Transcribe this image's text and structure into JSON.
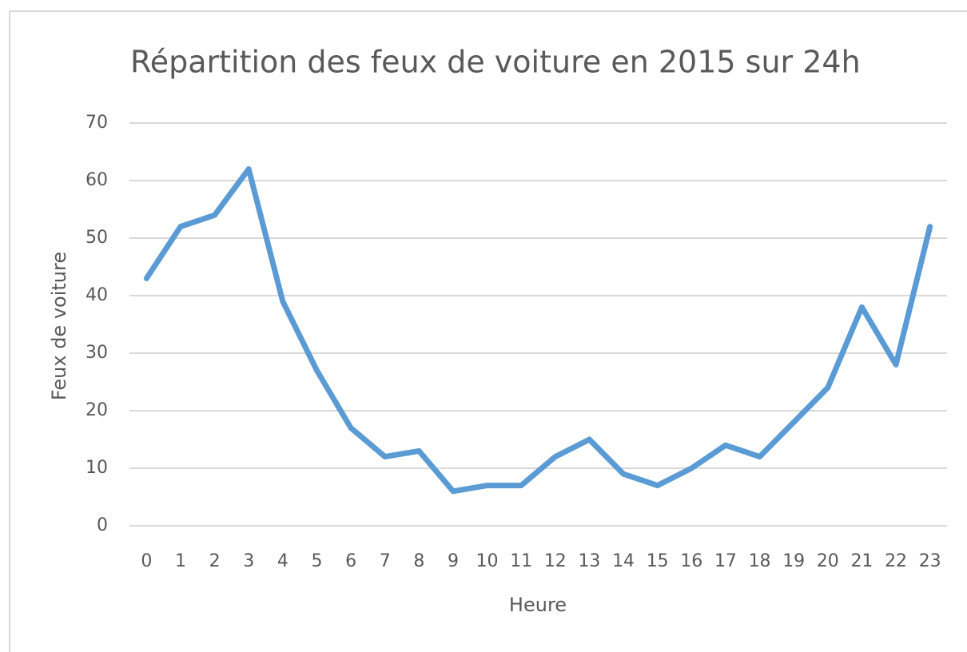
{
  "chart_data": {
    "type": "line",
    "title": "Répartition des feux de voiture en 2015 sur 24h",
    "x_label": "Heure",
    "y_label": "Feux de voiture",
    "categories": [
      "0",
      "1",
      "2",
      "3",
      "4",
      "5",
      "6",
      "7",
      "8",
      "9",
      "10",
      "11",
      "12",
      "13",
      "14",
      "15",
      "16",
      "17",
      "18",
      "19",
      "20",
      "21",
      "22",
      "23"
    ],
    "series": [
      {
        "name": "Feux de voiture",
        "color": "#5b9bd5",
        "values": [
          43,
          52,
          54,
          62,
          39,
          27,
          17,
          12,
          13,
          6,
          7,
          7,
          12,
          15,
          9,
          7,
          10,
          14,
          12,
          18,
          24,
          38,
          28,
          52
        ]
      }
    ],
    "ylim": [
      0,
      70
    ],
    "yticks": [
      0,
      10,
      20,
      30,
      40,
      50,
      60,
      70
    ],
    "grid": true,
    "legend": false
  }
}
